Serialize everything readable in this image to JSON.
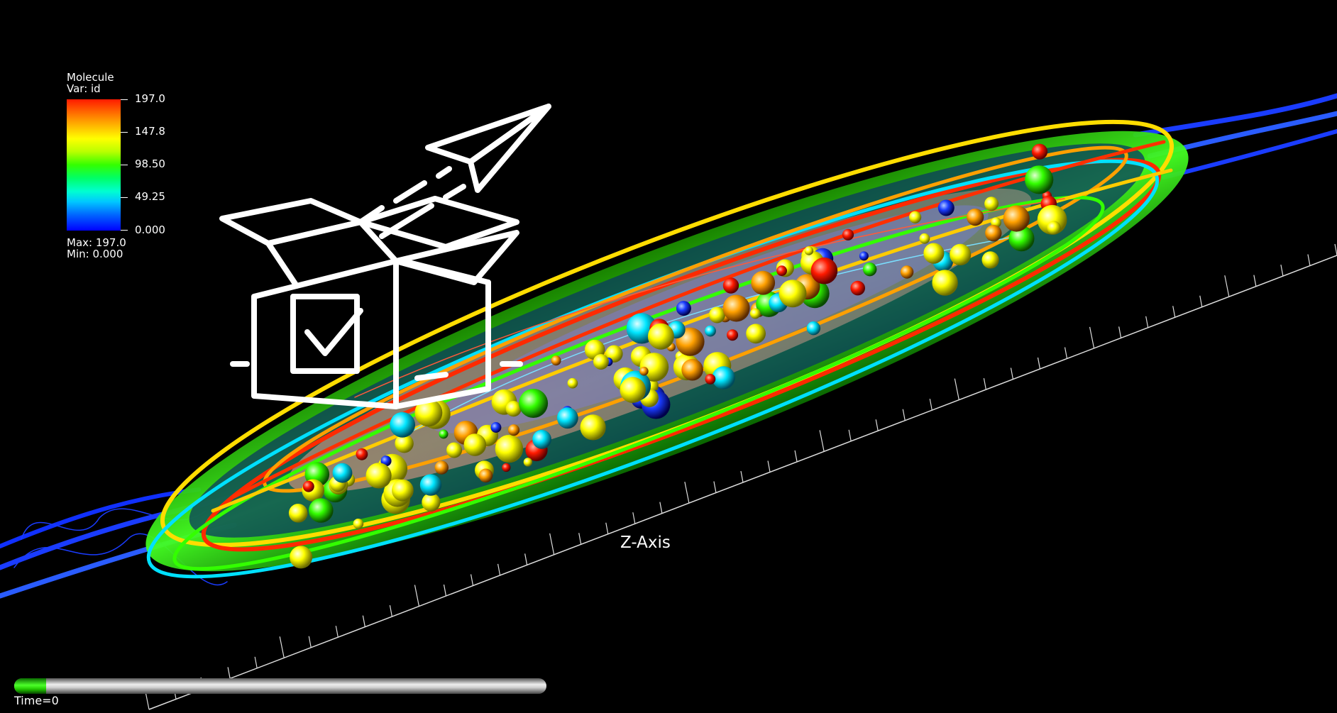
{
  "legend": {
    "title_line1": "Molecule",
    "title_line2": "Var: id",
    "ticks": [
      "197.0",
      "147.8",
      "98.50",
      "49.25",
      "0.000"
    ],
    "max_label": "Max:  197.0",
    "min_label": "Min:  0.000",
    "range": [
      0.0,
      197.0
    ],
    "colors": [
      "#ff0000",
      "#ffff00",
      "#00ff00",
      "#00ffff",
      "#0000ff"
    ]
  },
  "scene": {
    "axis_label": "Z-Axis",
    "overlay_icon": "package-check-paper-plane-icon"
  },
  "timeline": {
    "progress": 0.06,
    "time_text": "Time=0"
  }
}
